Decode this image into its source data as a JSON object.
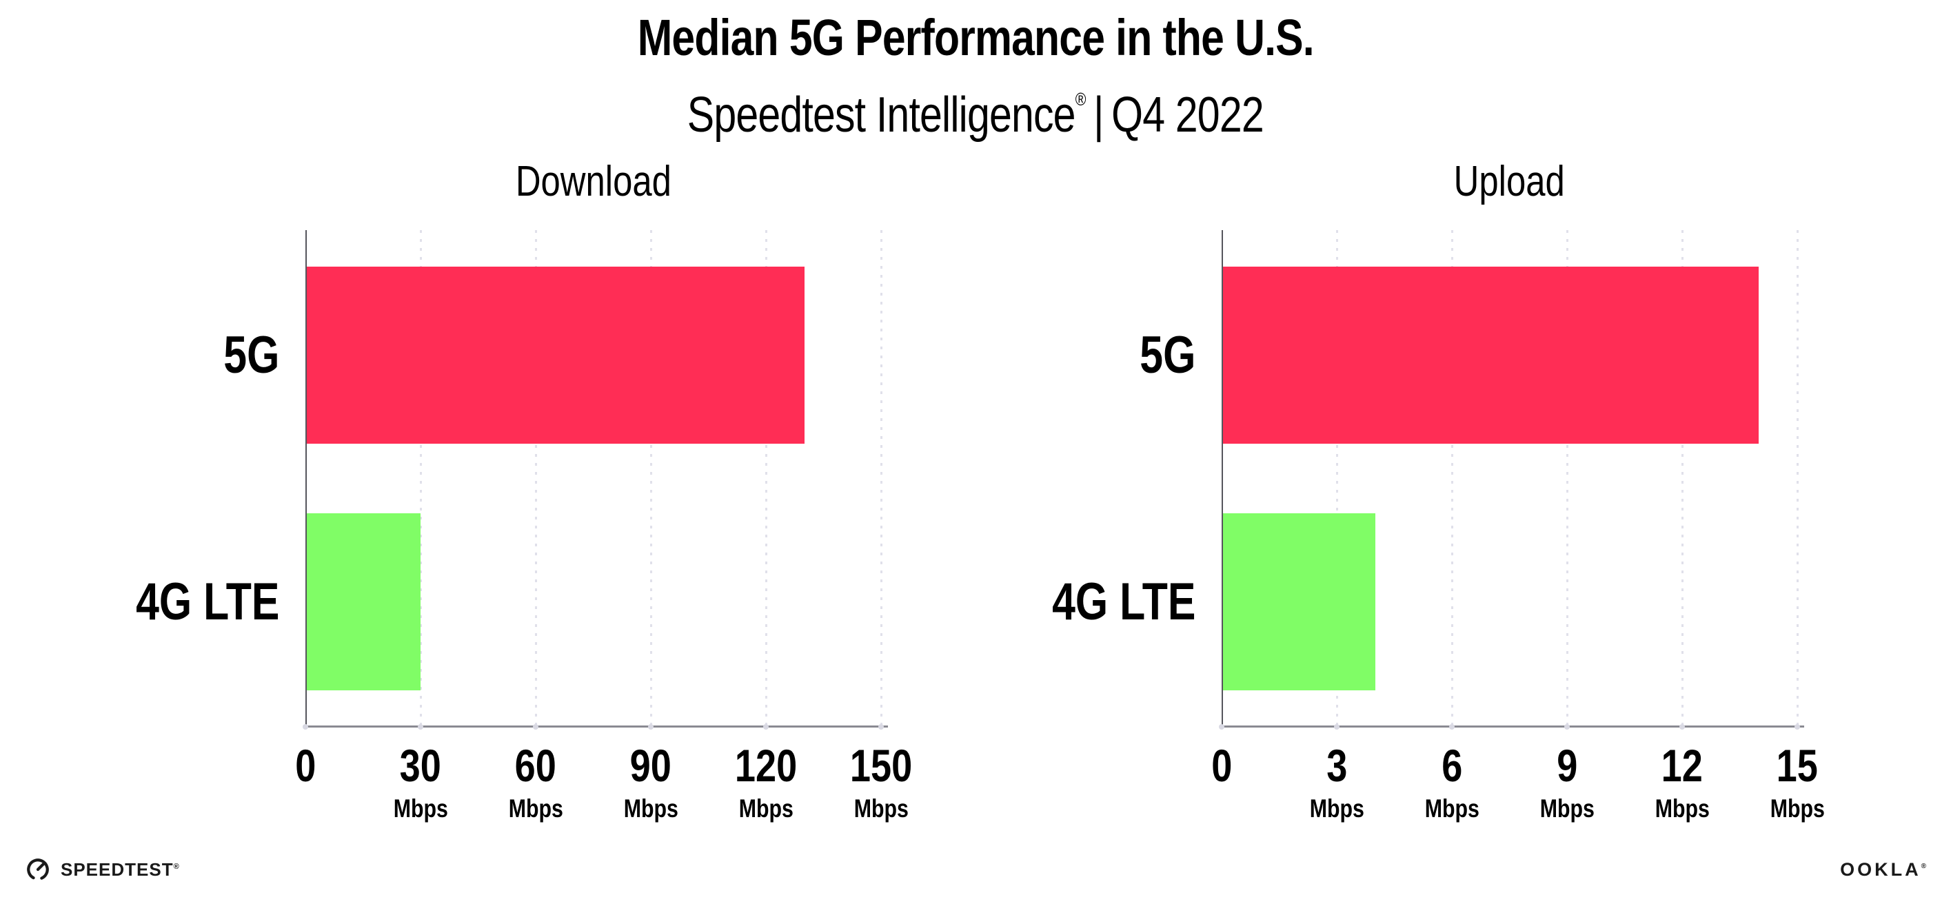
{
  "header": {
    "title": "Median 5G Performance in the U.S.",
    "subtitle": {
      "product": "Speedtest Intelligence",
      "trademark": "®",
      "divider": "|",
      "period": "Q4 2022"
    }
  },
  "chart_data": [
    {
      "type": "bar",
      "orientation": "horizontal",
      "title": "Download",
      "categories": [
        "5G",
        "4G LTE"
      ],
      "values": [
        130,
        30
      ],
      "unit": "Mbps",
      "xlim": [
        0,
        150
      ],
      "xticks": [
        0,
        30,
        60,
        90,
        120,
        150
      ],
      "bar_colors": [
        "#FF2D55",
        "#80FD66"
      ],
      "grid": "vertical-dotted",
      "legend": "none"
    },
    {
      "type": "bar",
      "orientation": "horizontal",
      "title": "Upload",
      "categories": [
        "5G",
        "4G LTE"
      ],
      "values": [
        14,
        4
      ],
      "unit": "Mbps",
      "xlim": [
        0,
        15
      ],
      "xticks": [
        0,
        3,
        6,
        9,
        12,
        15
      ],
      "bar_colors": [
        "#FF2D55",
        "#80FD66"
      ],
      "grid": "vertical-dotted",
      "legend": "none"
    }
  ],
  "footer": {
    "speedtest_logo_text": "SPEEDTEST",
    "speedtest_trademark": "®",
    "ookla_logo_text": "OOKLA",
    "ookla_trademark": "®"
  },
  "colors": {
    "bar_5g": "#FF2D55",
    "bar_4g_lte": "#80FD66",
    "gridline": "#E0E0EA",
    "x_axis_line": "#8A8A92",
    "y_axis_line": "#55555C",
    "tick_dot": "#D9D9E3",
    "text": "#000000",
    "background": "#FFFFFF"
  }
}
